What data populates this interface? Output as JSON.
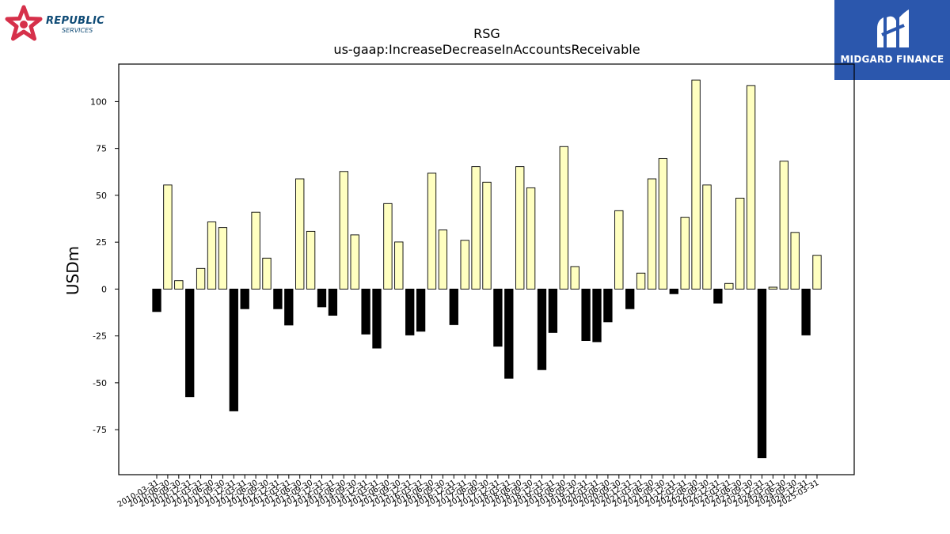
{
  "logos": {
    "left": {
      "main": "REPUBLIC",
      "sub": "SERVICES",
      "icon": "republic-star-icon",
      "color": "#d6304a",
      "text_color": "#0e4a75"
    },
    "right": {
      "name": "MIDGARD FINANCE",
      "icon": "midgard-m-icon",
      "background": "#2b57ad"
    }
  },
  "chart_data": {
    "type": "bar",
    "title": "RSG",
    "subtitle": "us-gaap:IncreaseDecreaseInAccountsReceivable",
    "xlabel": "",
    "ylabel": "USDm",
    "ylim": [
      -99,
      120
    ],
    "yticks": [
      -75,
      -50,
      -25,
      0,
      25,
      50,
      75,
      100
    ],
    "grid": false,
    "legend": "none",
    "colors": {
      "positive": "#ffffc0",
      "negative": "#000000",
      "edge": "#000000"
    },
    "categories": [
      "2010-03-31",
      "2010-06-30",
      "2010-09-30",
      "2010-12-31",
      "2011-03-31",
      "2011-06-30",
      "2011-09-30",
      "2011-12-31",
      "2012-03-31",
      "2012-06-30",
      "2012-09-30",
      "2012-12-31",
      "2013-03-31",
      "2013-06-30",
      "2013-09-30",
      "2013-12-31",
      "2014-03-31",
      "2014-06-30",
      "2014-09-30",
      "2014-12-31",
      "2015-03-31",
      "2015-06-30",
      "2015-09-30",
      "2015-12-31",
      "2016-03-31",
      "2016-06-30",
      "2016-09-30",
      "2016-12-31",
      "2017-03-31",
      "2017-06-30",
      "2017-09-30",
      "2017-12-31",
      "2018-03-31",
      "2018-06-30",
      "2018-09-30",
      "2018-12-31",
      "2019-03-31",
      "2019-06-30",
      "2019-09-30",
      "2019-12-31",
      "2020-03-31",
      "2020-06-30",
      "2020-09-30",
      "2020-12-31",
      "2021-03-31",
      "2021-06-30",
      "2021-09-30",
      "2021-12-31",
      "2022-03-31",
      "2022-06-30",
      "2022-09-30",
      "2022-12-31",
      "2023-03-31",
      "2023-06-30",
      "2023-09-30",
      "2023-12-31",
      "2024-03-31",
      "2024-06-30",
      "2024-09-30",
      "2024-12-31",
      "2025-03-31"
    ],
    "values": [
      -12,
      55.5,
      4.5,
      -57.5,
      11,
      35.8,
      32.8,
      -65,
      -10.5,
      41,
      16.5,
      -10.5,
      -19.2,
      58.8,
      30.8,
      -9.5,
      -14,
      62.7,
      28.9,
      -24,
      -31.5,
      45.6,
      25.1,
      -24.5,
      -22.5,
      61.8,
      31.5,
      -19,
      26,
      65.3,
      57,
      -30.5,
      -47.6,
      65.3,
      54,
      -43,
      -23.2,
      76,
      12,
      -27.5,
      -28.1,
      -17.5,
      41.8,
      -10.5,
      8.5,
      58.8,
      69.6,
      -2.5,
      38.3,
      111.5,
      55.5,
      -7.5,
      3,
      48.5,
      108.5,
      -90,
      1,
      68.2,
      30.2,
      -24.5,
      18
    ]
  }
}
